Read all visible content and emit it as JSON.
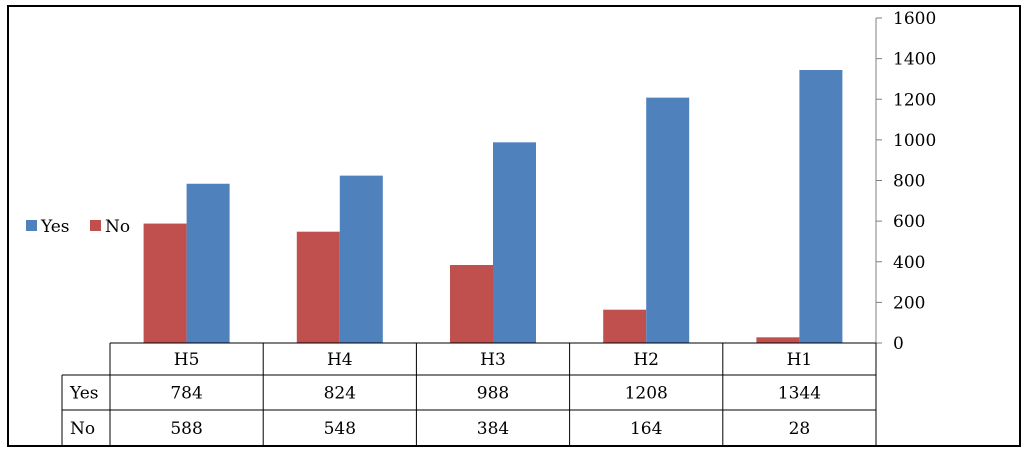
{
  "chart_data": {
    "type": "bar",
    "categories": [
      "H5",
      "H4",
      "H3",
      "H2",
      "H1"
    ],
    "series": [
      {
        "name": "No",
        "values": [
          588,
          548,
          384,
          164,
          28
        ],
        "color": "#C0504D"
      },
      {
        "name": "Yes",
        "values": [
          784,
          824,
          988,
          1208,
          1344
        ],
        "color": "#4F81BD"
      }
    ],
    "legend_order": [
      "Yes",
      "No"
    ],
    "legend_position": "left",
    "table_row_order": [
      "Yes",
      "No"
    ],
    "ylim": [
      0,
      1600
    ],
    "yticks": [
      0,
      200,
      400,
      600,
      800,
      1000,
      1200,
      1400,
      1600
    ],
    "y_axis_side": "right",
    "data_table": true,
    "grid": false
  }
}
